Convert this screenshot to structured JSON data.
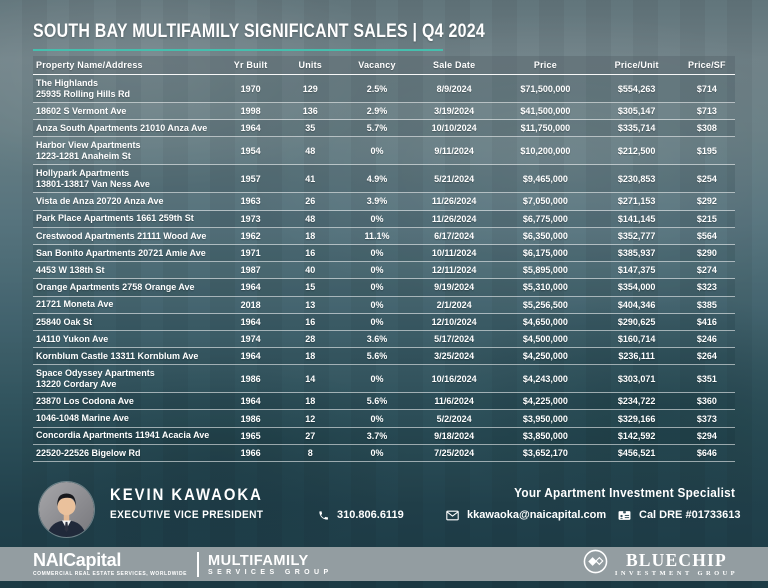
{
  "colors": {
    "accent_teal": "#45bfae",
    "brandbar_gray": "#939da1",
    "background_top": "#647warning678",
    "background_bottom": "#1b3943"
  },
  "header": {
    "title": "SOUTH BAY MULTIFAMILY SIGNIFICANT SALES | Q4 2024"
  },
  "table": {
    "columns": [
      "Property Name/Address",
      "Yr Built",
      "Units",
      "Vacancy",
      "Sale Date",
      "Price",
      "Price/Unit",
      "Price/SF"
    ],
    "rows": [
      {
        "property": "The Highlands",
        "property2": "25935 Rolling Hills Rd",
        "yr_built": "1970",
        "units": "129",
        "vacancy": "2.5%",
        "sale_date": "8/9/2024",
        "price": "$71,500,000",
        "price_unit": "$554,263",
        "price_sf": "$714"
      },
      {
        "property": "18602 S Vermont Ave",
        "property2": "",
        "yr_built": "1998",
        "units": "136",
        "vacancy": "2.9%",
        "sale_date": "3/19/2024",
        "price": "$41,500,000",
        "price_unit": "$305,147",
        "price_sf": "$713"
      },
      {
        "property": "Anza South Apartments 21010 Anza Ave",
        "property2": "",
        "yr_built": "1964",
        "units": "35",
        "vacancy": "5.7%",
        "sale_date": "10/10/2024",
        "price": "$11,750,000",
        "price_unit": "$335,714",
        "price_sf": "$308"
      },
      {
        "property": "Harbor View Apartments",
        "property2": "1223-1281 Anaheim St",
        "yr_built": "1954",
        "units": "48",
        "vacancy": "0%",
        "sale_date": "9/11/2024",
        "price": "$10,200,000",
        "price_unit": "$212,500",
        "price_sf": "$195"
      },
      {
        "property": "Hollypark Apartments",
        "property2": "13801-13817 Van Ness Ave",
        "yr_built": "1957",
        "units": "41",
        "vacancy": "4.9%",
        "sale_date": "5/21/2024",
        "price": "$9,465,000",
        "price_unit": "$230,853",
        "price_sf": "$254"
      },
      {
        "property": "Vista de Anza 20720 Anza Ave",
        "property2": "",
        "yr_built": "1963",
        "units": "26",
        "vacancy": "3.9%",
        "sale_date": "11/26/2024",
        "price": "$7,050,000",
        "price_unit": "$271,153",
        "price_sf": "$292"
      },
      {
        "property": "Park Place Apartments 1661 259th St",
        "property2": "",
        "yr_built": "1973",
        "units": "48",
        "vacancy": "0%",
        "sale_date": "11/26/2024",
        "price": "$6,775,000",
        "price_unit": "$141,145",
        "price_sf": "$215"
      },
      {
        "property": "Crestwood Apartments 21111 Wood Ave",
        "property2": "",
        "yr_built": "1962",
        "units": "18",
        "vacancy": "11.1%",
        "sale_date": "6/17/2024",
        "price": "$6,350,000",
        "price_unit": "$352,777",
        "price_sf": "$564"
      },
      {
        "property": "San Bonito Apartments 20721 Amie Ave",
        "property2": "",
        "yr_built": "1971",
        "units": "16",
        "vacancy": "0%",
        "sale_date": "10/11/2024",
        "price": "$6,175,000",
        "price_unit": "$385,937",
        "price_sf": "$290"
      },
      {
        "property": "4453 W 138th St",
        "property2": "",
        "yr_built": "1987",
        "units": "40",
        "vacancy": "0%",
        "sale_date": "12/11/2024",
        "price": "$5,895,000",
        "price_unit": "$147,375",
        "price_sf": "$274"
      },
      {
        "property": "Orange Apartments 2758 Orange Ave",
        "property2": "",
        "yr_built": "1964",
        "units": "15",
        "vacancy": "0%",
        "sale_date": "9/19/2024",
        "price": "$5,310,000",
        "price_unit": "$354,000",
        "price_sf": "$323"
      },
      {
        "property": "21721 Moneta Ave",
        "property2": "",
        "yr_built": "2018",
        "units": "13",
        "vacancy": "0%",
        "sale_date": "2/1/2024",
        "price": "$5,256,500",
        "price_unit": "$404,346",
        "price_sf": "$385"
      },
      {
        "property": "25840 Oak St",
        "property2": "",
        "yr_built": "1964",
        "units": "16",
        "vacancy": "0%",
        "sale_date": "12/10/2024",
        "price": "$4,650,000",
        "price_unit": "$290,625",
        "price_sf": "$416"
      },
      {
        "property": "14110 Yukon Ave",
        "property2": "",
        "yr_built": "1974",
        "units": "28",
        "vacancy": "3.6%",
        "sale_date": "5/17/2024",
        "price": "$4,500,000",
        "price_unit": "$160,714",
        "price_sf": "$246"
      },
      {
        "property": "Kornblum Castle 13311 Kornblum Ave",
        "property2": "",
        "yr_built": "1964",
        "units": "18",
        "vacancy": "5.6%",
        "sale_date": "3/25/2024",
        "price": "$4,250,000",
        "price_unit": "$236,111",
        "price_sf": "$264"
      },
      {
        "property": "Space Odyssey Apartments",
        "property2": "13220 Cordary Ave",
        "yr_built": "1986",
        "units": "14",
        "vacancy": "0%",
        "sale_date": "10/16/2024",
        "price": "$4,243,000",
        "price_unit": "$303,071",
        "price_sf": "$351"
      },
      {
        "property": "23870 Los Codona Ave",
        "property2": "",
        "yr_built": "1964",
        "units": "18",
        "vacancy": "5.6%",
        "sale_date": "11/6/2024",
        "price": "$4,225,000",
        "price_unit": "$234,722",
        "price_sf": "$360"
      },
      {
        "property": "1046-1048 Marine Ave",
        "property2": "",
        "yr_built": "1986",
        "units": "12",
        "vacancy": "0%",
        "sale_date": "5/2/2024",
        "price": "$3,950,000",
        "price_unit": "$329,166",
        "price_sf": "$373"
      },
      {
        "property": "Concordia Apartments 11941 Acacia Ave",
        "property2": "",
        "yr_built": "1965",
        "units": "27",
        "vacancy": "3.7%",
        "sale_date": "9/18/2024",
        "price": "$3,850,000",
        "price_unit": "$142,592",
        "price_sf": "$294"
      },
      {
        "property": "22520-22526 Bigelow Rd",
        "property2": "",
        "yr_built": "1966",
        "units": "8",
        "vacancy": "0%",
        "sale_date": "7/25/2024",
        "price": "$3,652,170",
        "price_unit": "$456,521",
        "price_sf": "$646"
      }
    ]
  },
  "footer": {
    "agent_name": "KEVIN KAWAOKA",
    "agent_title": "EXECUTIVE VICE PRESIDENT",
    "tagline": "Your Apartment Investment Specialist",
    "phone": "310.806.6119",
    "email": "kkawaoka@naicapital.com",
    "license": "Cal DRE #01733613",
    "icons": {
      "avatar": "agent-photo-avatar",
      "phone": "phone-icon",
      "email": "envelope-icon",
      "license": "id-card-icon"
    }
  },
  "brandbar": {
    "nai_bold": "NAI",
    "nai_rest": "Capital",
    "nai_tagline": "COMMERCIAL REAL ESTATE SERVICES, WORLDWIDE",
    "division_line1": "MULTIFAMILY",
    "division_line2": "SERVICES GROUP",
    "bluechip_name": "BLUECHIP",
    "bluechip_sub": "INVESTMENT GROUP",
    "icons": {
      "bluechip_mark": "diamond-logo-icon"
    }
  }
}
